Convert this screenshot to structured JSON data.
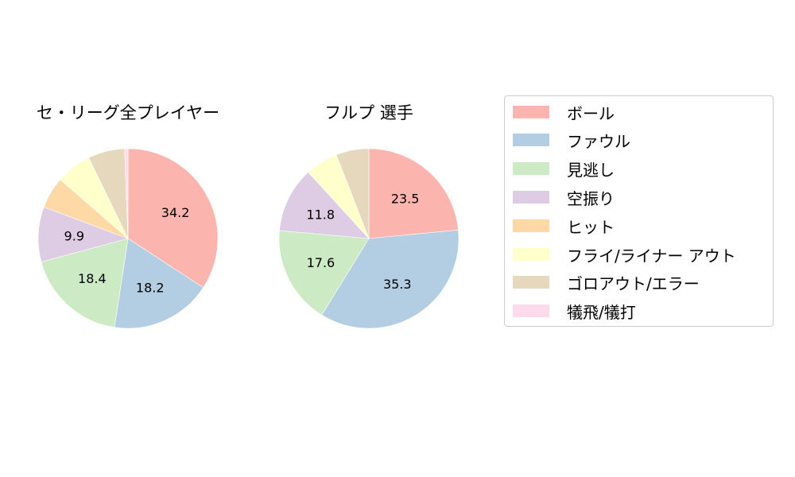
{
  "chart_data": [
    {
      "type": "pie",
      "title": "セ・リーグ全プレイヤー",
      "categories": [
        "ボール",
        "ファウル",
        "見逃し",
        "空振り",
        "ヒット",
        "フライ/ライナー アウト",
        "ゴロアウト/エラー",
        "犠飛/犠打"
      ],
      "values": [
        34.2,
        18.2,
        18.4,
        9.9,
        5.7,
        6.4,
        6.6,
        0.6
      ],
      "labels_shown": [
        "34.2",
        "18.2",
        "18.4",
        "9.9",
        "",
        "",
        "",
        ""
      ],
      "start_angle": "top",
      "direction": "clockwise"
    },
    {
      "type": "pie",
      "title": "フルプ  選手",
      "categories": [
        "ボール",
        "ファウル",
        "見逃し",
        "空振り",
        "ヒット",
        "フライ/ライナー アウト",
        "ゴロアウト/エラー",
        "犠飛/犠打"
      ],
      "values": [
        23.5,
        35.3,
        17.6,
        11.8,
        0,
        5.9,
        5.9,
        0
      ],
      "labels_shown": [
        "23.5",
        "35.3",
        "17.6",
        "11.8",
        "",
        "",
        "",
        ""
      ],
      "start_angle": "top",
      "direction": "clockwise"
    }
  ],
  "legend": {
    "items": [
      {
        "label": "ボール",
        "color": "#fbb4ae"
      },
      {
        "label": "ファウル",
        "color": "#b3cde3"
      },
      {
        "label": "見逃し",
        "color": "#ccebc5"
      },
      {
        "label": "空振り",
        "color": "#decbe4"
      },
      {
        "label": "ヒット",
        "color": "#fed9a6"
      },
      {
        "label": "フライ/ライナー アウト",
        "color": "#ffffcc"
      },
      {
        "label": "ゴロアウト/エラー",
        "color": "#e5d8bd"
      },
      {
        "label": "犠飛/犠打",
        "color": "#fddaec"
      }
    ]
  },
  "titles": {
    "pie1": "セ・リーグ全プレイヤー",
    "pie2": "フルプ  選手"
  }
}
